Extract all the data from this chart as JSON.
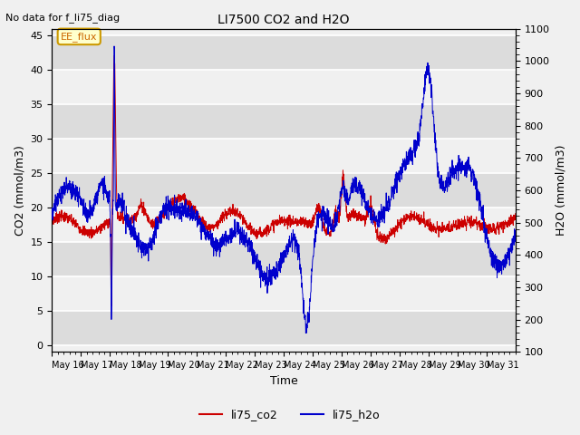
{
  "title": "LI7500 CO2 and H2O",
  "subtitle": "No data for f_li75_diag",
  "xlabel": "Time",
  "ylabel_left": "CO2 (mmol/m3)",
  "ylabel_right": "H2O (mmol/m3)",
  "ylim_left": [
    -1,
    46
  ],
  "ylim_right": [
    100,
    1100
  ],
  "annotation": "EE_flux",
  "legend": [
    "li75_co2",
    "li75_h2o"
  ],
  "color_co2": "#cc0000",
  "color_h2o": "#0000cc",
  "bg_light": "#f0f0f0",
  "bg_dark": "#dcdcdc",
  "x_tick_labels": [
    "May 16",
    "May 17",
    "May 18",
    "May 19",
    "May 20",
    "May 21",
    "May 22",
    "May 23",
    "May 24",
    "May 25",
    "May 26",
    "May 27",
    "May 28",
    "May 29",
    "May 30",
    "May 31"
  ],
  "num_days": 16,
  "yticks_left": [
    0,
    5,
    10,
    15,
    20,
    25,
    30,
    35,
    40,
    45
  ],
  "yticks_right": [
    100,
    200,
    300,
    400,
    500,
    600,
    700,
    800,
    900,
    1000,
    1100
  ]
}
